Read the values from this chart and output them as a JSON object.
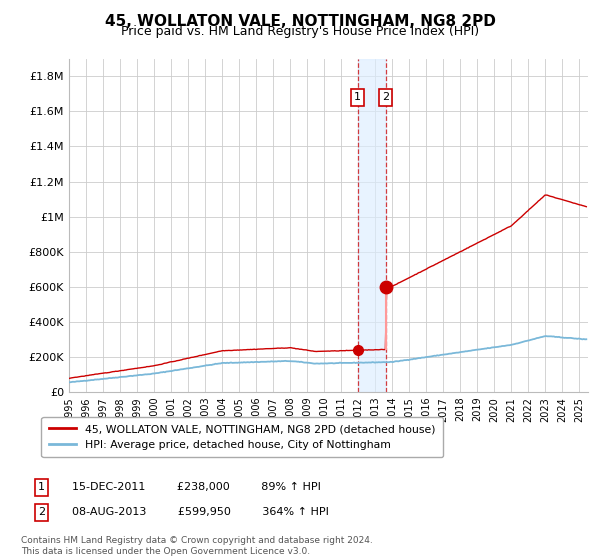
{
  "title": "45, WOLLATON VALE, NOTTINGHAM, NG8 2PD",
  "subtitle": "Price paid vs. HM Land Registry's House Price Index (HPI)",
  "legend_line1": "45, WOLLATON VALE, NOTTINGHAM, NG8 2PD (detached house)",
  "legend_line2": "HPI: Average price, detached house, City of Nottingham",
  "footnote": "Contains HM Land Registry data © Crown copyright and database right 2024.\nThis data is licensed under the Open Government Licence v3.0.",
  "annotation1_date": "15-DEC-2011",
  "annotation1_price": "£238,000",
  "annotation1_hpi": "89% ↑ HPI",
  "annotation2_date": "08-AUG-2013",
  "annotation2_price": "£599,950",
  "annotation2_hpi": "364% ↑ HPI",
  "transaction1_x": 2011.96,
  "transaction1_y": 238000,
  "transaction2_x": 2013.6,
  "transaction2_y": 599950,
  "hpi_color": "#7ab8d9",
  "price_color": "#cc0000",
  "background_color": "#ffffff",
  "plot_bg_color": "#ffffff",
  "grid_color": "#cccccc",
  "ylim": [
    0,
    1900000
  ],
  "xlim": [
    1995,
    2025.5
  ],
  "yticks": [
    0,
    200000,
    400000,
    600000,
    800000,
    1000000,
    1200000,
    1400000,
    1600000,
    1800000
  ],
  "ylabels": [
    "£0",
    "£200K",
    "£400K",
    "£600K",
    "£800K",
    "£1M",
    "£1.2M",
    "£1.4M",
    "£1.6M",
    "£1.8M"
  ]
}
